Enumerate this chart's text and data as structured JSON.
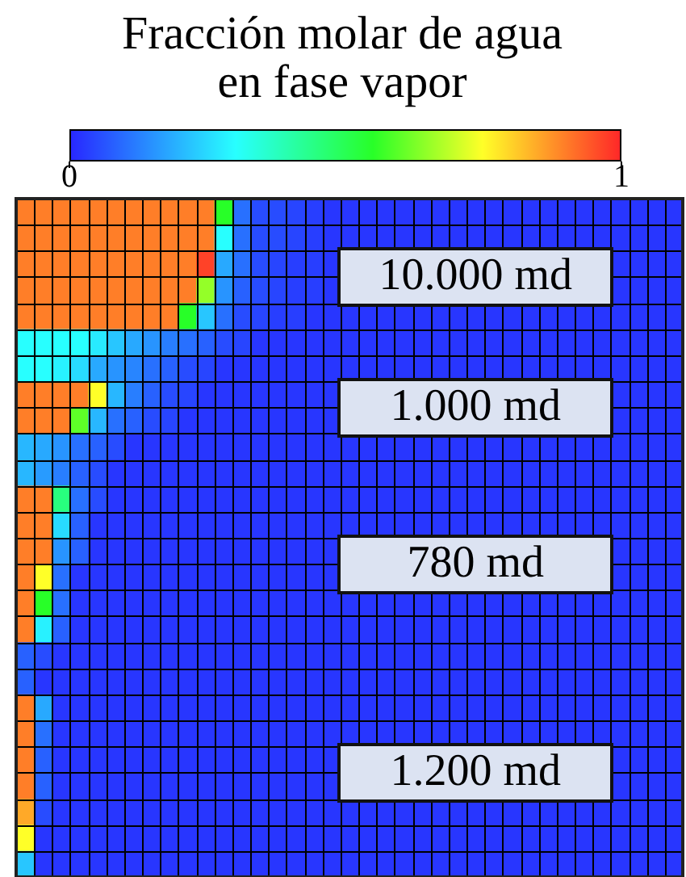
{
  "chart_data": {
    "type": "heatmap",
    "clabel": "Fracción molar de agua en fase vapor",
    "categories": [
      null,
      null,
      null,
      null,
      null,
      null,
      null,
      null,
      null,
      null,
      null,
      null,
      null,
      null,
      null,
      null,
      null,
      null,
      null,
      null,
      null,
      null,
      null,
      null,
      null,
      null,
      null,
      null,
      null,
      null,
      null,
      null,
      null,
      null,
      null,
      null,
      null
    ],
    "y_categories": [
      null,
      null,
      null,
      null,
      null,
      null,
      null,
      null,
      null,
      null,
      null,
      null,
      null,
      null,
      null,
      null,
      null,
      null,
      null,
      null,
      null,
      null,
      null,
      null,
      null,
      null
    ],
    "clim": [
      0,
      1
    ],
    "cticks": [
      0,
      1
    ],
    "annotations": [
      "10.000 md",
      "1.000 md",
      "780 md",
      "1.200 md"
    ],
    "cells": [
      [
        0.9,
        0.9,
        0.9,
        0.9,
        0.9,
        0.9,
        0.9,
        0.9,
        0.9,
        0.9,
        0.9,
        0.55,
        0.1,
        0.05,
        0.05,
        0.04,
        0.03,
        0.02,
        0.02,
        0.02,
        0.02,
        0.02,
        0.02,
        0.02,
        0.02,
        0.02,
        0.02,
        0.02,
        0.02,
        0.02,
        0.02,
        0.02,
        0.02,
        0.02,
        0.02,
        0.02,
        0.02
      ],
      [
        0.9,
        0.9,
        0.9,
        0.9,
        0.9,
        0.9,
        0.9,
        0.9,
        0.9,
        0.9,
        0.9,
        0.3,
        0.1,
        0.05,
        0.05,
        0.04,
        0.03,
        0.02,
        0.02,
        0.02,
        0.02,
        0.02,
        0.02,
        0.02,
        0.02,
        0.02,
        0.02,
        0.02,
        0.02,
        0.02,
        0.02,
        0.02,
        0.02,
        0.02,
        0.02,
        0.02,
        0.02
      ],
      [
        0.9,
        0.9,
        0.9,
        0.9,
        0.9,
        0.9,
        0.9,
        0.9,
        0.9,
        0.9,
        0.97,
        0.18,
        0.1,
        0.05,
        0.04,
        0.03,
        0.03,
        0.02,
        null,
        null,
        null,
        null,
        null,
        null,
        null,
        null,
        null,
        null,
        null,
        null,
        null,
        null,
        null,
        0.02,
        0.02,
        0.02,
        0.02
      ],
      [
        0.9,
        0.9,
        0.9,
        0.9,
        0.9,
        0.9,
        0.9,
        0.9,
        0.9,
        0.9,
        0.65,
        0.15,
        0.08,
        0.05,
        0.04,
        0.03,
        0.03,
        0.02,
        null,
        null,
        null,
        null,
        null,
        null,
        null,
        null,
        null,
        null,
        null,
        null,
        null,
        null,
        null,
        0.02,
        0.02,
        0.02,
        0.02
      ],
      [
        0.9,
        0.9,
        0.9,
        0.9,
        0.9,
        0.9,
        0.9,
        0.9,
        0.9,
        0.55,
        0.22,
        0.1,
        0.05,
        0.04,
        0.03,
        0.03,
        0.02,
        0.02,
        0.02,
        0.02,
        0.02,
        0.02,
        0.02,
        0.02,
        0.02,
        0.02,
        0.02,
        0.02,
        0.02,
        0.02,
        0.02,
        0.02,
        0.02,
        0.02,
        0.02,
        0.02,
        0.02
      ],
      [
        0.3,
        0.3,
        0.3,
        0.3,
        0.27,
        0.22,
        0.18,
        0.15,
        0.12,
        0.1,
        0.08,
        0.05,
        0.04,
        0.02,
        0.02,
        0.02,
        0.02,
        0.02,
        0.02,
        0.02,
        0.02,
        0.02,
        0.02,
        0.02,
        0.02,
        0.02,
        0.02,
        0.02,
        0.02,
        0.02,
        0.02,
        0.02,
        0.02,
        0.02,
        0.02,
        0.02,
        0.02
      ],
      [
        0.3,
        0.3,
        0.28,
        0.25,
        0.18,
        0.15,
        0.13,
        0.1,
        0.08,
        0.05,
        0.04,
        0.02,
        0.02,
        0.02,
        0.02,
        0.02,
        0.02,
        0.02,
        0.02,
        0.02,
        0.02,
        0.02,
        0.02,
        0.02,
        0.02,
        0.02,
        0.02,
        0.02,
        0.02,
        0.02,
        0.02,
        0.02,
        0.02,
        0.02,
        0.02,
        0.02,
        0.02
      ],
      [
        0.9,
        0.9,
        0.9,
        0.9,
        0.75,
        0.2,
        0.12,
        0.08,
        0.05,
        0.04,
        0.02,
        0.02,
        0.02,
        0.02,
        0.02,
        0.02,
        0.02,
        0.02,
        null,
        null,
        null,
        null,
        null,
        null,
        null,
        null,
        null,
        null,
        null,
        null,
        null,
        null,
        null,
        0.02,
        0.02,
        0.02,
        0.02
      ],
      [
        0.9,
        0.9,
        0.9,
        0.6,
        0.2,
        0.1,
        0.08,
        0.05,
        0.04,
        0.02,
        0.02,
        0.02,
        0.02,
        0.02,
        0.02,
        0.02,
        0.02,
        0.02,
        null,
        null,
        null,
        null,
        null,
        null,
        null,
        null,
        null,
        null,
        null,
        null,
        null,
        null,
        null,
        0.02,
        0.02,
        0.02,
        0.02
      ],
      [
        0.2,
        0.18,
        0.15,
        0.1,
        0.08,
        0.05,
        0.02,
        0.02,
        0.02,
        0.02,
        0.02,
        0.02,
        0.02,
        0.02,
        0.02,
        0.02,
        0.02,
        0.02,
        0.02,
        0.02,
        0.02,
        0.02,
        0.02,
        0.02,
        0.02,
        0.02,
        0.02,
        0.02,
        0.02,
        0.02,
        0.02,
        0.02,
        0.02,
        0.02,
        0.02,
        0.02,
        0.02
      ],
      [
        0.2,
        0.16,
        0.12,
        0.08,
        0.05,
        0.02,
        0.02,
        0.02,
        0.02,
        0.02,
        0.02,
        0.02,
        0.02,
        0.02,
        0.02,
        0.02,
        0.02,
        0.02,
        0.02,
        0.02,
        0.02,
        0.02,
        0.02,
        0.02,
        0.02,
        0.02,
        0.02,
        0.02,
        0.02,
        0.02,
        0.02,
        0.02,
        0.02,
        0.02,
        0.02,
        0.02,
        0.02
      ],
      [
        0.9,
        0.9,
        0.45,
        0.1,
        0.05,
        0.02,
        0.02,
        0.02,
        0.02,
        0.02,
        0.02,
        0.02,
        0.02,
        0.02,
        0.02,
        0.02,
        0.02,
        0.02,
        0.02,
        0.02,
        0.02,
        0.02,
        0.02,
        0.02,
        0.02,
        0.02,
        0.02,
        0.02,
        0.02,
        0.02,
        0.02,
        0.02,
        0.02,
        0.02,
        0.02,
        0.02,
        0.02
      ],
      [
        0.9,
        0.9,
        0.25,
        0.08,
        0.02,
        0.02,
        0.02,
        0.02,
        0.02,
        0.02,
        0.02,
        0.02,
        0.02,
        0.02,
        0.02,
        0.02,
        0.02,
        0.02,
        0.02,
        0.02,
        0.02,
        0.02,
        0.02,
        0.02,
        0.02,
        0.02,
        0.02,
        0.02,
        0.02,
        0.02,
        0.02,
        0.02,
        0.02,
        0.02,
        0.02,
        0.02,
        0.02
      ],
      [
        0.9,
        0.9,
        0.15,
        0.08,
        0.02,
        0.02,
        0.02,
        0.02,
        0.02,
        0.02,
        0.02,
        0.02,
        0.02,
        0.02,
        0.02,
        0.02,
        0.02,
        0.02,
        null,
        null,
        null,
        null,
        null,
        null,
        null,
        null,
        null,
        null,
        null,
        null,
        null,
        null,
        null,
        0.02,
        0.02,
        0.02,
        0.02
      ],
      [
        0.9,
        0.75,
        0.1,
        0.02,
        0.02,
        0.02,
        0.02,
        0.02,
        0.02,
        0.02,
        0.02,
        0.02,
        0.02,
        0.02,
        0.02,
        0.02,
        0.02,
        0.02,
        null,
        null,
        null,
        null,
        null,
        null,
        null,
        null,
        null,
        null,
        null,
        null,
        null,
        null,
        null,
        0.02,
        0.02,
        0.02,
        0.02
      ],
      [
        0.9,
        0.55,
        0.1,
        0.02,
        0.02,
        0.02,
        0.02,
        0.02,
        0.02,
        0.02,
        0.02,
        0.02,
        0.02,
        0.02,
        0.02,
        0.02,
        0.02,
        0.02,
        0.02,
        0.02,
        0.02,
        0.02,
        0.02,
        0.02,
        0.02,
        0.02,
        0.02,
        0.02,
        0.02,
        0.02,
        0.02,
        0.02,
        0.02,
        0.02,
        0.02,
        0.02,
        0.02
      ],
      [
        0.9,
        0.28,
        0.08,
        0.02,
        0.02,
        0.02,
        0.02,
        0.02,
        0.02,
        0.02,
        0.02,
        0.02,
        0.02,
        0.02,
        0.02,
        0.02,
        0.02,
        0.02,
        0.02,
        0.02,
        0.02,
        0.02,
        0.02,
        0.02,
        0.02,
        0.02,
        0.02,
        0.02,
        0.02,
        0.02,
        0.02,
        0.02,
        0.02,
        0.02,
        0.02,
        0.02,
        0.02
      ],
      [
        0.08,
        0.05,
        0.02,
        0.02,
        0.02,
        0.02,
        0.02,
        0.02,
        0.02,
        0.02,
        0.02,
        0.02,
        0.02,
        0.02,
        0.02,
        0.02,
        0.02,
        0.02,
        0.02,
        0.02,
        0.02,
        0.02,
        0.02,
        0.02,
        0.02,
        0.02,
        0.02,
        0.02,
        0.02,
        0.02,
        0.02,
        0.02,
        0.02,
        0.02,
        0.02,
        0.02,
        0.02
      ],
      [
        0.08,
        0.02,
        0.02,
        0.02,
        0.02,
        0.02,
        0.02,
        0.02,
        0.02,
        0.02,
        0.02,
        0.02,
        0.02,
        0.02,
        0.02,
        0.02,
        0.02,
        0.02,
        0.02,
        0.02,
        0.02,
        0.02,
        0.02,
        0.02,
        0.02,
        0.02,
        0.02,
        0.02,
        0.02,
        0.02,
        0.02,
        0.02,
        0.02,
        0.02,
        0.02,
        0.02,
        0.02
      ],
      [
        0.9,
        0.18,
        0.02,
        0.02,
        0.02,
        0.02,
        0.02,
        0.02,
        0.02,
        0.02,
        0.02,
        0.02,
        0.02,
        0.02,
        0.02,
        0.02,
        0.02,
        0.02,
        0.02,
        0.02,
        0.02,
        0.02,
        0.02,
        0.02,
        0.02,
        0.02,
        0.02,
        0.02,
        0.02,
        0.02,
        0.02,
        0.02,
        0.02,
        0.02,
        0.02,
        0.02,
        0.02
      ],
      [
        0.9,
        0.1,
        0.02,
        0.02,
        0.02,
        0.02,
        0.02,
        0.02,
        0.02,
        0.02,
        0.02,
        0.02,
        0.02,
        0.02,
        0.02,
        0.02,
        0.02,
        0.02,
        0.02,
        0.02,
        0.02,
        0.02,
        0.02,
        0.02,
        0.02,
        0.02,
        0.02,
        0.02,
        0.02,
        0.02,
        0.02,
        0.02,
        0.02,
        0.02,
        0.02,
        0.02,
        0.02
      ],
      [
        0.9,
        0.08,
        0.02,
        0.02,
        0.02,
        0.02,
        0.02,
        0.02,
        0.02,
        0.02,
        0.02,
        0.02,
        0.02,
        0.02,
        0.02,
        0.02,
        0.02,
        0.02,
        null,
        null,
        null,
        null,
        null,
        null,
        null,
        null,
        null,
        null,
        null,
        null,
        null,
        null,
        null,
        0.02,
        0.02,
        0.02,
        0.02
      ],
      [
        0.9,
        0.08,
        0.02,
        0.02,
        0.02,
        0.02,
        0.02,
        0.02,
        0.02,
        0.02,
        0.02,
        0.02,
        0.02,
        0.02,
        0.02,
        0.02,
        0.02,
        0.02,
        null,
        null,
        null,
        null,
        null,
        null,
        null,
        null,
        null,
        null,
        null,
        null,
        null,
        null,
        null,
        0.02,
        0.02,
        0.02,
        0.02
      ],
      [
        0.85,
        0.05,
        0.02,
        0.02,
        0.02,
        0.02,
        0.02,
        0.02,
        0.02,
        0.02,
        0.02,
        0.02,
        0.02,
        0.02,
        0.02,
        0.02,
        0.02,
        0.02,
        0.02,
        0.02,
        0.02,
        0.02,
        0.02,
        0.02,
        0.02,
        0.02,
        0.02,
        0.02,
        0.02,
        0.02,
        0.02,
        0.02,
        0.02,
        0.02,
        0.02,
        0.02,
        0.02
      ],
      [
        0.75,
        0.02,
        0.02,
        0.02,
        0.02,
        0.02,
        0.02,
        0.02,
        0.02,
        0.02,
        0.02,
        0.02,
        0.02,
        0.02,
        0.02,
        0.02,
        0.02,
        0.02,
        0.02,
        0.02,
        0.02,
        0.02,
        0.02,
        0.02,
        0.02,
        0.02,
        0.02,
        0.02,
        0.02,
        0.02,
        0.02,
        0.02,
        0.02,
        0.02,
        0.02,
        0.02,
        0.02
      ],
      [
        0.22,
        0.02,
        0.02,
        0.02,
        0.02,
        0.02,
        0.02,
        0.02,
        0.02,
        0.02,
        0.02,
        0.02,
        0.02,
        0.02,
        0.02,
        0.02,
        0.02,
        0.02,
        0.02,
        0.02,
        0.02,
        0.02,
        0.02,
        0.02,
        0.02,
        0.02,
        0.02,
        0.02,
        0.02,
        0.02,
        0.02,
        0.02,
        0.02,
        0.02,
        0.02,
        0.02,
        0.02
      ]
    ]
  }
}
